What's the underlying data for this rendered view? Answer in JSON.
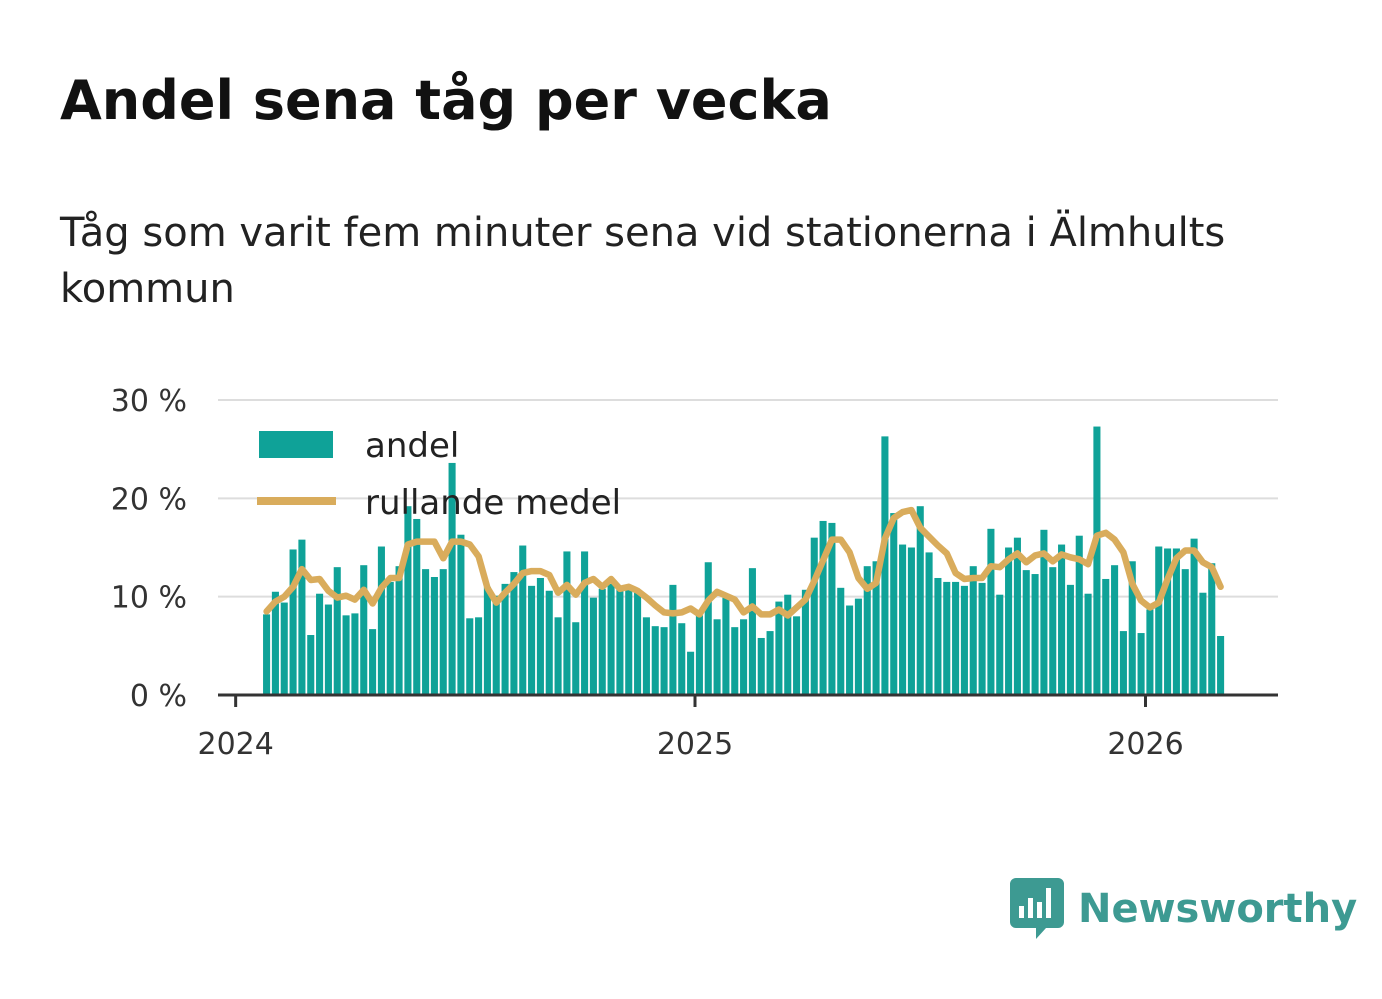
{
  "header": {
    "title": "Andel sena tåg per vecka",
    "subtitle": "Tåg som varit fem minuter sena vid stationerna i Älmhults kommun"
  },
  "brand": {
    "name": "Newsworthy",
    "icon": "newsworthy-logo-icon",
    "color": "#3d9a92"
  },
  "colors": {
    "bars": "#0fa298",
    "line": "#d9ac5c",
    "grid": "#dddddd",
    "axis": "#333333"
  },
  "chart_data": {
    "type": "bar",
    "title": "Andel sena tåg per vecka",
    "xlabel": "",
    "ylabel": "",
    "ylim": [
      0,
      30
    ],
    "y_ticks": [
      0,
      10,
      20,
      30
    ],
    "y_tick_labels": [
      "0 %",
      "10 %",
      "20 %",
      "30 %"
    ],
    "x_ticks": [
      {
        "label": "2024",
        "week_index": -3.5
      },
      {
        "label": "2025",
        "week_index": 48.5
      },
      {
        "label": "2026",
        "week_index": 99.5
      }
    ],
    "x_range": [
      -5.5,
      114.5
    ],
    "legend": {
      "position": "top-left",
      "entries": [
        "andel",
        "rullande medel"
      ]
    },
    "series": [
      {
        "name": "andel",
        "type": "bar",
        "values": [
          8.2,
          10.5,
          9.4,
          14.8,
          15.8,
          6.1,
          10.3,
          9.2,
          13.0,
          8.1,
          8.3,
          13.2,
          6.7,
          15.1,
          11.5,
          13.1,
          19.2,
          17.9,
          12.8,
          12.0,
          12.8,
          23.6,
          16.3,
          7.8,
          7.9,
          11.0,
          10.1,
          11.3,
          12.5,
          15.2,
          11.1,
          11.9,
          10.6,
          7.9,
          14.6,
          7.4,
          14.6,
          9.9,
          10.8,
          11.3,
          10.8,
          11.0,
          10.5,
          7.9,
          7.0,
          6.9,
          11.2,
          7.3,
          4.4,
          8.1,
          13.5,
          7.7,
          9.9,
          6.9,
          7.7,
          12.9,
          5.8,
          6.5,
          9.5,
          10.2,
          8.0,
          10.7,
          16.0,
          17.7,
          17.5,
          10.9,
          9.1,
          9.8,
          13.1,
          13.6,
          26.3,
          18.5,
          15.3,
          15.0,
          19.2,
          14.5,
          11.9,
          11.5,
          11.5,
          11.1,
          13.1,
          11.4,
          16.9,
          10.2,
          15.0,
          16.0,
          12.7,
          12.3,
          16.8,
          13.0,
          15.3,
          11.2,
          16.2,
          10.3,
          27.3,
          11.8,
          13.2,
          6.5,
          13.6,
          6.3,
          8.7,
          15.1,
          14.9,
          14.9,
          12.8,
          15.9,
          10.4,
          13.4,
          6.0
        ],
        "color": "#0fa298"
      },
      {
        "name": "rullande medel",
        "type": "line",
        "values": [
          8.5,
          9.5,
          10.0,
          11.0,
          12.8,
          11.7,
          11.8,
          10.6,
          9.9,
          10.1,
          9.7,
          10.7,
          9.3,
          10.9,
          11.9,
          11.9,
          15.3,
          15.6,
          15.6,
          15.6,
          13.9,
          15.6,
          15.6,
          15.3,
          14.1,
          10.9,
          9.4,
          10.4,
          11.3,
          12.4,
          12.6,
          12.6,
          12.2,
          10.4,
          11.2,
          10.2,
          11.4,
          11.8,
          11.0,
          11.8,
          10.8,
          11.0,
          10.6,
          9.9,
          9.1,
          8.4,
          8.3,
          8.4,
          8.8,
          8.2,
          9.6,
          10.5,
          10.1,
          9.7,
          8.4,
          9.0,
          8.2,
          8.2,
          8.7,
          8.1,
          8.9,
          9.7,
          11.6,
          13.7,
          15.8,
          15.8,
          14.5,
          11.9,
          10.8,
          11.4,
          15.9,
          18.0,
          18.6,
          18.8,
          17.0,
          16.1,
          15.2,
          14.4,
          12.4,
          11.8,
          11.9,
          11.9,
          13.1,
          13.0,
          13.8,
          14.4,
          13.5,
          14.2,
          14.4,
          13.6,
          14.3,
          14.0,
          13.8,
          13.3,
          16.2,
          16.5,
          15.8,
          14.5,
          11.3,
          9.6,
          8.9,
          9.4,
          11.8,
          13.9,
          14.7,
          14.7,
          13.5,
          13.0,
          11.0
        ],
        "color": "#d9ac5c"
      }
    ]
  }
}
